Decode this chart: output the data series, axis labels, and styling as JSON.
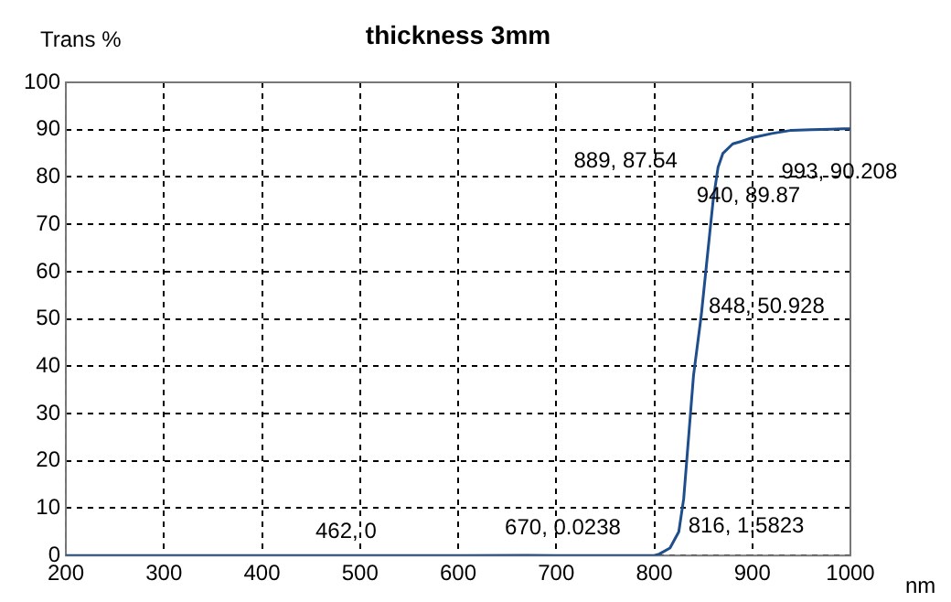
{
  "chart_data": {
    "type": "line",
    "title": "thickness 3mm",
    "xlabel": "nm",
    "ylabel": "Trans %",
    "x": [
      200,
      300,
      400,
      462,
      500,
      600,
      670,
      700,
      800,
      805,
      816,
      825,
      830,
      835,
      840,
      848,
      855,
      860,
      865,
      870,
      880,
      889,
      900,
      920,
      940,
      960,
      980,
      993,
      1000
    ],
    "series": [
      {
        "color": "#1f4e8c",
        "values": [
          0,
          0,
          0,
          0,
          0,
          0,
          0.0238,
          0,
          0,
          0.3,
          1.5823,
          5,
          12,
          25,
          38,
          50.928,
          65,
          75,
          82,
          85,
          87,
          87.54,
          88.3,
          89.2,
          89.87,
          90,
          90.1,
          90.208,
          90.2
        ]
      }
    ],
    "xlim": [
      200,
      1000
    ],
    "xticks": [
      200,
      300,
      400,
      500,
      600,
      700,
      800,
      900,
      1000
    ],
    "ylim": [
      0,
      100
    ],
    "yticks": [
      0,
      10,
      20,
      30,
      40,
      50,
      60,
      70,
      80,
      90,
      100
    ],
    "grid": true,
    "legend": false,
    "marker": "none",
    "line_style": "solid",
    "annotations": [
      {
        "text": "462, 0",
        "x": 462,
        "y": 0
      },
      {
        "text": "670, 0.0238",
        "x": 670,
        "y": 0.0238
      },
      {
        "text": "816, 1.5823",
        "x": 816,
        "y": 1.5823
      },
      {
        "text": "848, 50.928",
        "x": 848,
        "y": 50.928
      },
      {
        "text": "889, 87.54",
        "x": 889,
        "y": 87.54
      },
      {
        "text": "940, 89.87",
        "x": 940,
        "y": 89.87
      },
      {
        "text": "993, 90.208",
        "x": 993,
        "y": 90.208
      }
    ]
  }
}
